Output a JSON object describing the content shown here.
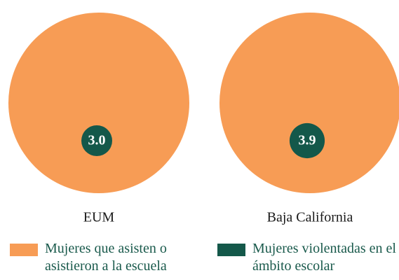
{
  "chart_data": {
    "type": "nested-circles",
    "categories": [
      "EUM",
      "Baja California"
    ],
    "series": [
      {
        "name": "Mujeres que asisten o asistieron a la escuela",
        "color": "#f79c55"
      },
      {
        "name": "Mujeres violentadas en el ámbito escolar",
        "color": "#14584a",
        "values": [
          3.0,
          3.9
        ],
        "value_labels": [
          "3.0",
          "3.9"
        ]
      }
    ]
  }
}
